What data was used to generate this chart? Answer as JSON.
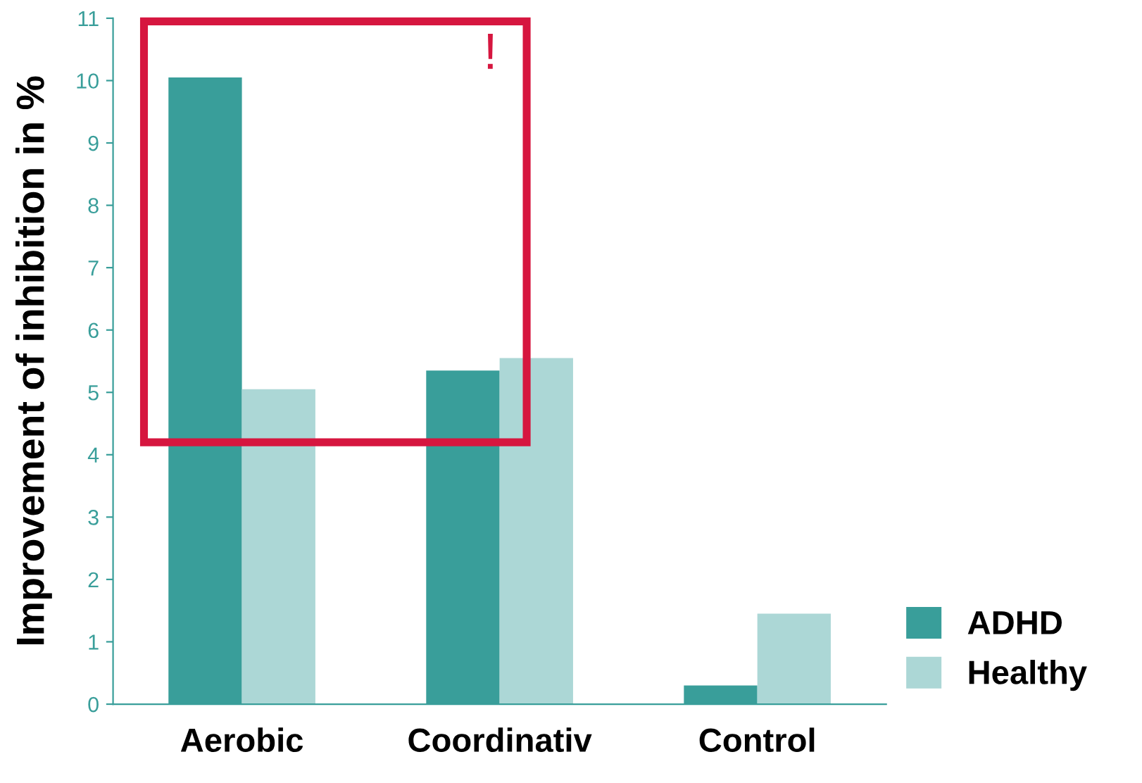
{
  "chart_data": {
    "type": "bar",
    "ylabel": "Improvement of inhibition in %",
    "categories": [
      "Aerobic",
      "Coordinativ",
      "Control"
    ],
    "series": [
      {
        "name": "ADHD",
        "color": "#399e9a",
        "values": [
          10.05,
          5.35,
          0.3
        ]
      },
      {
        "name": "Healthy",
        "color": "#acd7d6",
        "values": [
          5.05,
          5.55,
          1.45
        ]
      }
    ],
    "ylim": [
      0,
      11
    ],
    "yticks": [
      0,
      1,
      2,
      3,
      4,
      5,
      6,
      7,
      8,
      9,
      10,
      11
    ],
    "annotations": [
      "!"
    ],
    "grid": false,
    "legend": "bottom right"
  }
}
